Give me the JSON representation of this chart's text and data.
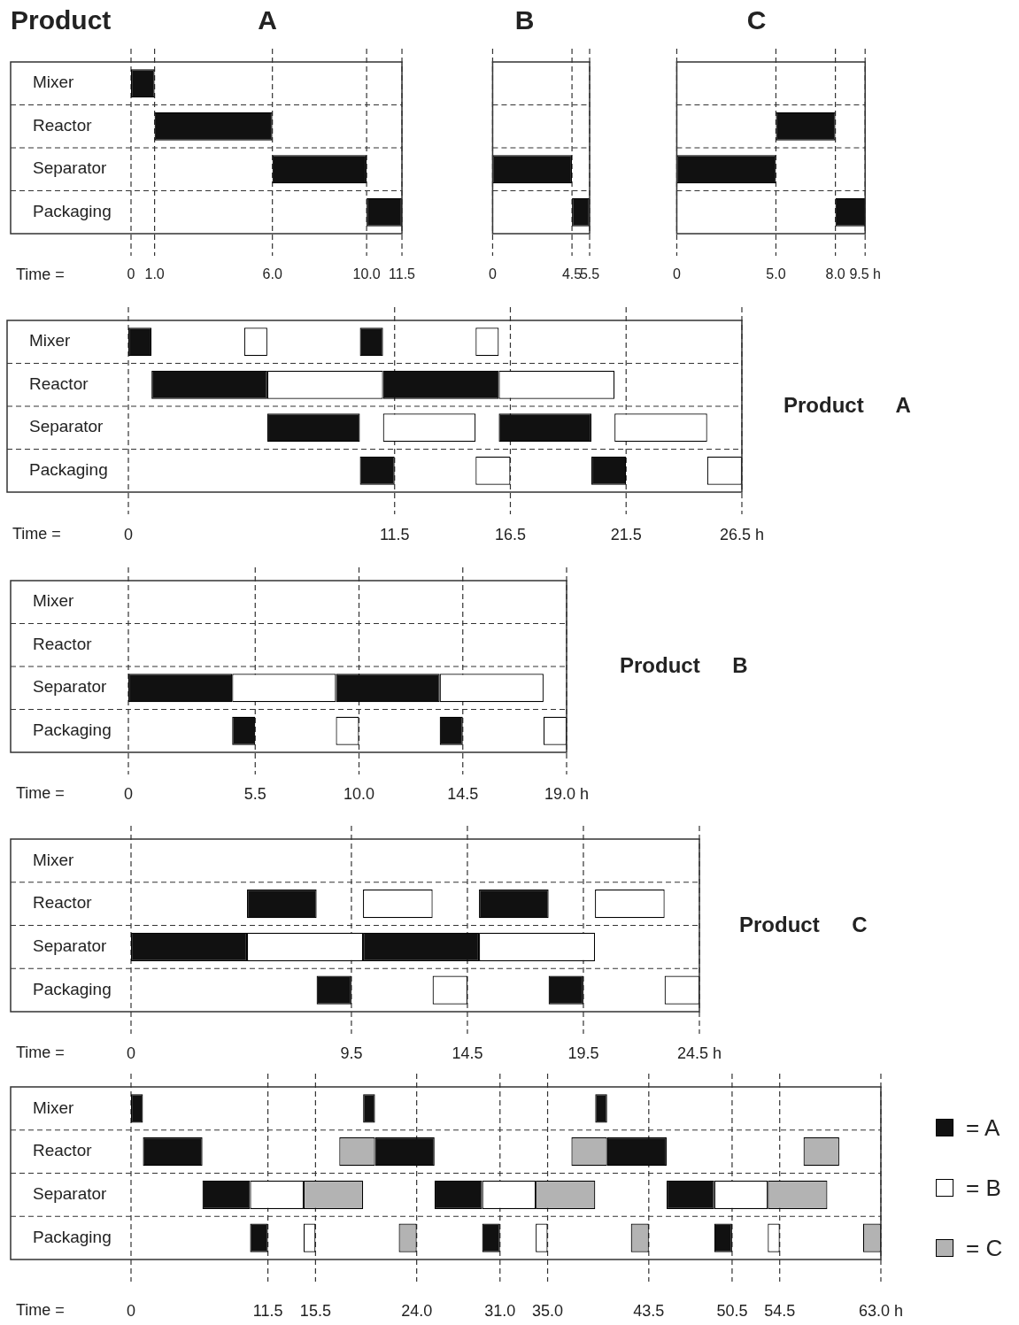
{
  "chart_data": [
    {
      "type": "bar",
      "orientation": "horizontal",
      "title": "A",
      "xlabel": "Time =",
      "annotations": [
        "Product"
      ],
      "categories": [
        "Mixer",
        "Reactor",
        "Separator",
        "Packaging"
      ],
      "xlim": [
        0,
        11.5
      ],
      "xticks": [
        0,
        {
          "value": 1,
          "label": "1.0"
        },
        {
          "value": 6,
          "label": "6.0"
        },
        {
          "value": 10,
          "label": "10.0"
        },
        11.5
      ],
      "grid": true,
      "series": [
        {
          "color": "#111111",
          "base": [
            0,
            1,
            6,
            10
          ],
          "values": [
            1,
            5,
            4,
            1.5
          ]
        }
      ]
    },
    {
      "type": "bar",
      "orientation": "horizontal",
      "title": "B",
      "categories": [
        null,
        null,
        null,
        null
      ],
      "tick_labels": "x",
      "xlim": [
        0,
        5.5
      ],
      "xticks": [
        0,
        4.5,
        5.5
      ],
      "grid": true,
      "series": [
        {
          "color": "#111111",
          "base": [
            null,
            null,
            0,
            4.5
          ],
          "values": [
            null,
            null,
            4.5,
            1
          ]
        }
      ]
    },
    {
      "type": "bar",
      "orientation": "horizontal",
      "title": "C",
      "categories": [
        null,
        null,
        null,
        null
      ],
      "tick_labels": "x",
      "xlim": [
        0,
        9.5
      ],
      "xticks": [
        0,
        {
          "value": 5,
          "label": "5.0"
        },
        {
          "value": 8,
          "label": "8.0"
        },
        {
          "value": 9.5,
          "label": "9.5 h"
        }
      ],
      "grid": true,
      "series": [
        {
          "color": "#111111",
          "base": [
            null,
            5,
            0,
            8
          ],
          "values": [
            null,
            3,
            5,
            1.5
          ]
        }
      ]
    },
    {
      "type": "bar",
      "orientation": "horizontal",
      "annotations": [
        "Product A"
      ],
      "xlabel": "Time =",
      "categories": [
        "Mixer",
        "Reactor",
        "Separator",
        "Packaging"
      ],
      "xlim": [
        0,
        26.5
      ],
      "xticks": [
        0,
        11.5,
        16.5,
        21.5,
        {
          "value": 26.5,
          "label": "26.5 h"
        }
      ],
      "grid": true,
      "series": [
        {
          "color": "#111111",
          "base": [
            0,
            1,
            6,
            10
          ],
          "values": [
            1,
            5,
            4,
            1.5
          ]
        },
        {
          "color": "#ffffff",
          "base": [
            5,
            6,
            11,
            15
          ],
          "values": [
            1,
            5,
            4,
            1.5
          ]
        },
        {
          "color": "#111111",
          "base": [
            10,
            11,
            16,
            20
          ],
          "values": [
            1,
            5,
            4,
            1.5
          ]
        },
        {
          "color": "#ffffff",
          "base": [
            15,
            16,
            21,
            25
          ],
          "values": [
            1,
            5,
            4,
            1.5
          ]
        }
      ]
    },
    {
      "type": "bar",
      "orientation": "horizontal",
      "annotations": [
        "Product B"
      ],
      "xlabel": "Time =",
      "categories": [
        "Mixer",
        "Reactor",
        "Separator",
        "Packaging"
      ],
      "xlim": [
        0,
        19
      ],
      "xticks": [
        0,
        5.5,
        {
          "value": 10,
          "label": "10.0"
        },
        14.5,
        {
          "value": 19,
          "label": "19.0 h"
        }
      ],
      "grid": true,
      "series": [
        {
          "color": "#111111",
          "base": [
            null,
            null,
            0,
            4.5
          ],
          "values": [
            null,
            null,
            4.5,
            1
          ]
        },
        {
          "color": "#ffffff",
          "base": [
            null,
            null,
            4.5,
            9
          ],
          "values": [
            null,
            null,
            4.5,
            1
          ]
        },
        {
          "color": "#111111",
          "base": [
            null,
            null,
            9,
            13.5
          ],
          "values": [
            null,
            null,
            4.5,
            1
          ]
        },
        {
          "color": "#ffffff",
          "base": [
            null,
            null,
            13.5,
            18
          ],
          "values": [
            null,
            null,
            4.5,
            1
          ]
        }
      ]
    },
    {
      "type": "bar",
      "orientation": "horizontal",
      "annotations": [
        "Product C"
      ],
      "xlabel": "Time =",
      "categories": [
        "Mixer",
        "Reactor",
        "Separator",
        "Packaging"
      ],
      "xlim": [
        0,
        24.5
      ],
      "xticks": [
        0,
        9.5,
        14.5,
        19.5,
        {
          "value": 24.5,
          "label": "24.5 h"
        }
      ],
      "grid": true,
      "series": [
        {
          "color": "#111111",
          "base": [
            null,
            5,
            0,
            8
          ],
          "values": [
            null,
            3,
            5,
            1.5
          ]
        },
        {
          "color": "#ffffff",
          "base": [
            null,
            10,
            5,
            13
          ],
          "values": [
            null,
            3,
            5,
            1.5
          ]
        },
        {
          "color": "#111111",
          "base": [
            null,
            15,
            10,
            18
          ],
          "values": [
            null,
            3,
            5,
            1.5
          ]
        },
        {
          "color": "#ffffff",
          "base": [
            null,
            20,
            15,
            23
          ],
          "values": [
            null,
            3,
            5,
            1.5
          ]
        }
      ]
    },
    {
      "type": "bar",
      "orientation": "horizontal",
      "xlabel": "Time =",
      "categories": [
        "Mixer",
        "Reactor",
        "Separator",
        "Packaging"
      ],
      "xlim": [
        0,
        63
      ],
      "xticks": [
        0,
        11.5,
        15.5,
        {
          "value": 24,
          "label": "24.0"
        },
        {
          "value": 31,
          "label": "31.0"
        },
        {
          "value": 35,
          "label": "35.0"
        },
        43.5,
        50.5,
        54.5,
        {
          "value": 63,
          "label": "63.0 h"
        }
      ],
      "grid": true,
      "legend": "right",
      "series": [
        {
          "name": "= A",
          "color": "#111111",
          "base": [
            0,
            1,
            6,
            10
          ],
          "values": [
            1,
            5,
            4,
            1.5
          ]
        },
        {
          "name": "= B",
          "color": "#ffffff",
          "base": [
            null,
            null,
            10,
            14.5
          ],
          "values": [
            null,
            null,
            4.5,
            1
          ]
        },
        {
          "name": "= C",
          "color": "#b3b3b3",
          "base": [
            null,
            17.5,
            14.5,
            22.5
          ],
          "values": [
            null,
            3,
            5,
            1.5
          ]
        },
        {
          "color": "#111111",
          "base": [
            19.5,
            20.5,
            25.5,
            29.5
          ],
          "values": [
            1,
            5,
            4,
            1.5
          ]
        },
        {
          "color": "#ffffff",
          "base": [
            null,
            null,
            29.5,
            34
          ],
          "values": [
            null,
            null,
            4.5,
            1
          ]
        },
        {
          "color": "#b3b3b3",
          "base": [
            null,
            37,
            34,
            42
          ],
          "values": [
            null,
            3,
            5,
            1.5
          ]
        },
        {
          "color": "#111111",
          "base": [
            39,
            40,
            45,
            49
          ],
          "values": [
            1,
            5,
            4,
            1.5
          ]
        },
        {
          "color": "#ffffff",
          "base": [
            null,
            null,
            49,
            53.5
          ],
          "values": [
            null,
            null,
            4.5,
            1
          ]
        },
        {
          "color": "#b3b3b3",
          "base": [
            null,
            56.5,
            53.5,
            61.5
          ],
          "values": [
            null,
            3,
            5,
            1.5
          ]
        }
      ]
    }
  ]
}
